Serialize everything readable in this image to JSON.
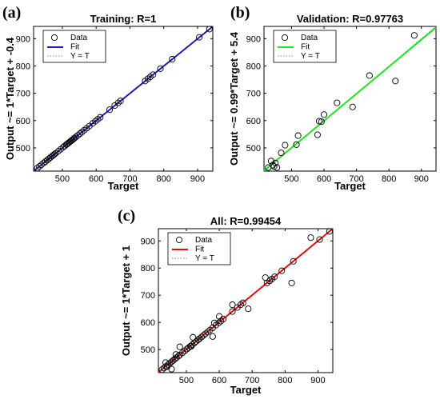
{
  "chart_data": [
    {
      "type": "scatter",
      "panel_label": "(a)",
      "title": "Training: R=1",
      "xlabel": "Target",
      "ylabel": "Output ~= 1*Target + -0.4",
      "xlim": [
        415,
        945
      ],
      "ylim": [
        415,
        945
      ],
      "xticks": [
        500,
        600,
        700,
        800,
        900
      ],
      "yticks": [
        500,
        600,
        700,
        800,
        900
      ],
      "legend": [
        "Data",
        "Fit",
        "Y = T"
      ],
      "legend_position": "top-left",
      "fit_color": "#1a1ab4",
      "fit": {
        "slope": 1,
        "intercept": -0.4
      },
      "x": [
        426,
        432,
        438,
        445,
        450,
        455,
        460,
        465,
        470,
        473,
        476,
        480,
        488,
        495,
        502,
        507,
        512,
        515,
        518,
        521,
        524,
        527,
        530,
        533,
        536,
        540,
        546,
        552,
        558,
        565,
        572,
        580,
        590,
        598,
        605,
        612,
        640,
        655,
        665,
        672,
        745,
        753,
        760,
        768,
        790,
        825,
        905,
        935
      ],
      "y": [
        426,
        432,
        438,
        445,
        450,
        455,
        460,
        465,
        470,
        473,
        476,
        480,
        488,
        495,
        502,
        507,
        512,
        515,
        518,
        521,
        524,
        527,
        530,
        533,
        536,
        540,
        546,
        552,
        558,
        565,
        572,
        580,
        590,
        598,
        605,
        612,
        640,
        655,
        665,
        672,
        745,
        753,
        760,
        768,
        790,
        825,
        905,
        935
      ]
    },
    {
      "type": "scatter",
      "panel_label": "(b)",
      "title": "Validation: R=0.97763",
      "xlabel": "Target",
      "ylabel": "Output ~= 0.99*Target + 5.4",
      "xlim": [
        415,
        945
      ],
      "ylim": [
        415,
        945
      ],
      "xticks": [
        500,
        600,
        700,
        800,
        900
      ],
      "yticks": [
        500,
        600,
        700,
        800,
        900
      ],
      "legend": [
        "Data",
        "Fit",
        "Y = T"
      ],
      "legend_position": "top-left",
      "fit_color": "#22e622",
      "fit": {
        "slope": 0.99,
        "intercept": 5.4
      },
      "x": [
        428,
        437,
        442,
        446,
        450,
        455,
        468,
        480,
        515,
        520,
        580,
        585,
        592,
        600,
        640,
        688,
        740,
        820,
        878
      ],
      "y": [
        428,
        452,
        437,
        432,
        445,
        428,
        482,
        510,
        512,
        545,
        548,
        598,
        596,
        622,
        665,
        650,
        765,
        745,
        912
      ]
    },
    {
      "type": "scatter",
      "panel_label": "(c)",
      "title": "All: R=0.99454",
      "xlabel": "Target",
      "ylabel": "Output ~= 1*Target + 1",
      "xlim": [
        415,
        945
      ],
      "ylim": [
        415,
        945
      ],
      "xticks": [
        500,
        600,
        700,
        800,
        900
      ],
      "yticks": [
        500,
        600,
        700,
        800,
        900
      ],
      "legend": [
        "Data",
        "Fit",
        "Y = T"
      ],
      "legend_position": "top-left",
      "fit_color": "#e01010",
      "fit": {
        "slope": 1,
        "intercept": 1
      },
      "x": [
        426,
        432,
        438,
        445,
        450,
        455,
        460,
        465,
        470,
        476,
        480,
        488,
        495,
        502,
        507,
        512,
        518,
        524,
        530,
        536,
        540,
        546,
        552,
        558,
        565,
        572,
        580,
        590,
        598,
        605,
        612,
        640,
        655,
        665,
        672,
        745,
        753,
        760,
        768,
        790,
        825,
        905,
        935,
        437,
        442,
        455,
        468,
        480,
        515,
        520,
        580,
        585,
        600,
        640,
        688,
        740,
        820,
        878
      ],
      "y": [
        426,
        432,
        438,
        445,
        450,
        455,
        460,
        465,
        470,
        476,
        480,
        488,
        495,
        502,
        507,
        512,
        518,
        524,
        530,
        536,
        540,
        546,
        552,
        558,
        565,
        572,
        580,
        590,
        598,
        605,
        612,
        640,
        655,
        665,
        672,
        745,
        753,
        760,
        768,
        790,
        825,
        905,
        935,
        452,
        437,
        428,
        482,
        510,
        512,
        545,
        548,
        598,
        622,
        665,
        650,
        765,
        745,
        912
      ]
    }
  ]
}
